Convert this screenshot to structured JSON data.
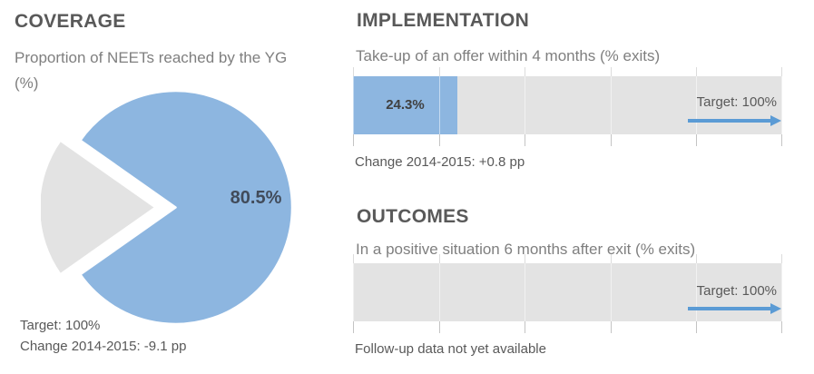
{
  "colors": {
    "accent_blue": "#8DB6E0",
    "track_gray": "#E3E3E3",
    "arrow_blue": "#5B9BD5",
    "heading_gray": "#595959",
    "subtitle_gray": "#7F7F7F",
    "pie_label_dark": "#414B5A",
    "bar_label_dark": "#404040"
  },
  "coverage": {
    "title": "COVERAGE",
    "subtitle": "Proportion of NEETs reached by the YG (%)",
    "pie_label": "80.5%",
    "target": "Target: 100%",
    "change": "Change 2014-2015: -9.1 pp"
  },
  "implementation": {
    "title": "IMPLEMENTATION",
    "subtitle": "Take-up of an offer within 4 months (% exits)",
    "bar_label": "24.3%",
    "target": "Target: 100%",
    "change": "Change 2014-2015: +0.8 pp"
  },
  "outcomes": {
    "title": "OUTCOMES",
    "subtitle": "In a positive situation 6 months after exit (% exits)",
    "target": "Target: 100%",
    "note": "Follow-up data not yet available"
  },
  "chart_data": [
    {
      "type": "pie",
      "title": "Proportion of NEETs reached by the YG (%)",
      "values": [
        80.5,
        19.5
      ],
      "value_labels": [
        "80.5%",
        ""
      ],
      "colors": [
        "#8DB6E0",
        "#E3E3E3"
      ],
      "explode_index": 1,
      "annotations": [
        "Target: 100%",
        "Change 2014-2015: -9.1 pp"
      ]
    },
    {
      "type": "bar",
      "title": "Take-up of an offer within 4 months (% exits)",
      "value": 24.3,
      "value_label": "24.3%",
      "axis_range": [
        0,
        100
      ],
      "gridlines": [
        0,
        20,
        40,
        60,
        80,
        100
      ],
      "target": 100,
      "target_label": "Target: 100%",
      "annotation": "Change 2014-2015: +0.8 pp",
      "bar_color": "#8DB6E0",
      "track_color": "#E3E3E3"
    },
    {
      "type": "bar",
      "title": "In a positive situation 6 months after exit (% exits)",
      "value": null,
      "axis_range": [
        0,
        100
      ],
      "gridlines": [
        0,
        20,
        40,
        60,
        80,
        100
      ],
      "target": 100,
      "target_label": "Target: 100%",
      "annotation": "Follow-up data not yet available",
      "track_color": "#E3E3E3"
    }
  ]
}
